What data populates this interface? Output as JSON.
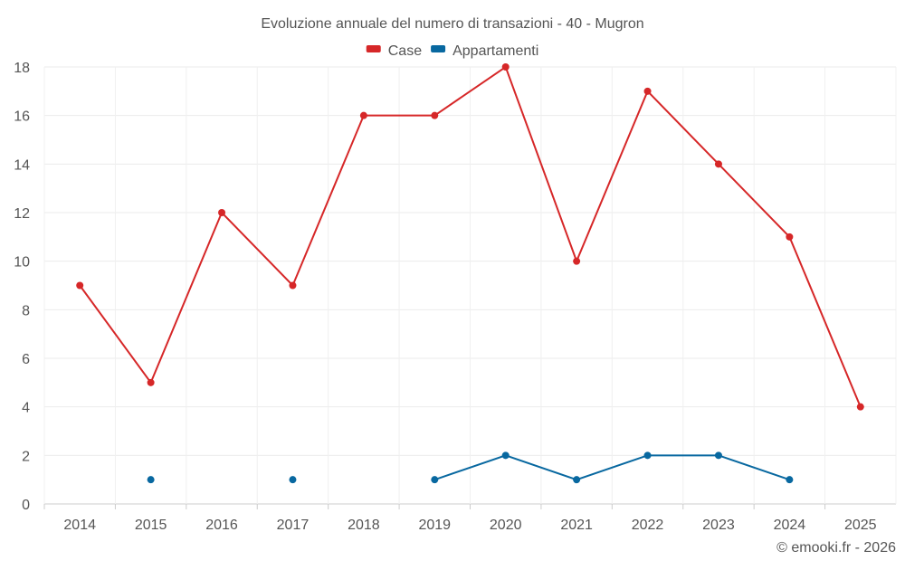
{
  "chart_data": {
    "type": "line",
    "title": "Evoluzione annuale del numero di transazioni - 40 - Mugron",
    "xlabel": "",
    "ylabel": "",
    "categories": [
      "2014",
      "2015",
      "2016",
      "2017",
      "2018",
      "2019",
      "2020",
      "2021",
      "2022",
      "2023",
      "2024",
      "2025"
    ],
    "ylim": [
      0,
      18
    ],
    "yticks": [
      0,
      2,
      4,
      6,
      8,
      10,
      12,
      14,
      16,
      18
    ],
    "grid": true,
    "legend_position": "top-center",
    "series": [
      {
        "name": "Case",
        "color": "#d62728",
        "values": [
          9,
          5,
          12,
          9,
          16,
          16,
          18,
          10,
          17,
          14,
          11,
          4
        ]
      },
      {
        "name": "Appartamenti",
        "color": "#0868a0",
        "values": [
          null,
          1,
          null,
          1,
          null,
          1,
          2,
          1,
          2,
          2,
          1,
          null
        ]
      }
    ],
    "credit": "© emooki.fr - 2026"
  }
}
